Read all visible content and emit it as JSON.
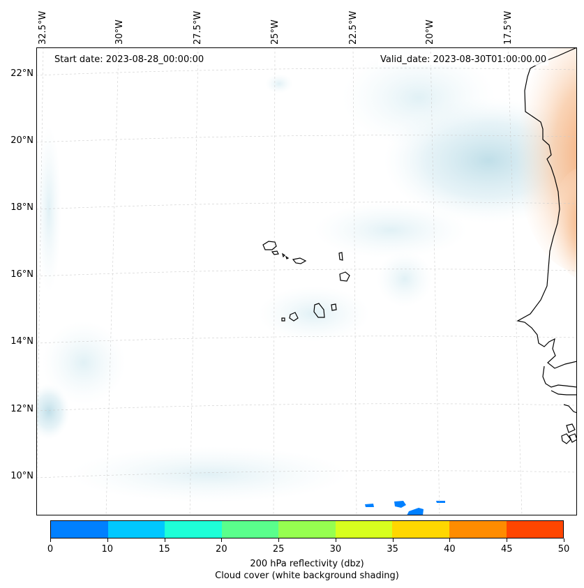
{
  "map": {
    "start_date": "Start date: 2023-08-28_00:00:00",
    "valid_date": "Valid_date: 2023-08-30T01:00:00.00",
    "lon_labels": [
      "32.5°W",
      "30°W",
      "27.5°W",
      "25°W",
      "22.5°W",
      "20°W",
      "17.5°W"
    ],
    "lat_labels": [
      "22°N",
      "20°N",
      "18°N",
      "16°N",
      "14°N",
      "12°N",
      "10°N"
    ],
    "gridlines": true,
    "features": [
      "Cabo Verde islands",
      "West African coastline"
    ]
  },
  "colorbar": {
    "ticks": [
      "0",
      "10",
      "15",
      "20",
      "25",
      "30",
      "35",
      "40",
      "45",
      "50"
    ],
    "colors": [
      "#0080ff",
      "#00c8ff",
      "#1effd7",
      "#5aff8c",
      "#96ff50",
      "#d7ff1e",
      "#ffd700",
      "#ff8c00",
      "#ff4600"
    ],
    "label_line1": "200 hPa reflectivity (dbz)",
    "label_line2": "Cloud cover (white background shading)"
  }
}
